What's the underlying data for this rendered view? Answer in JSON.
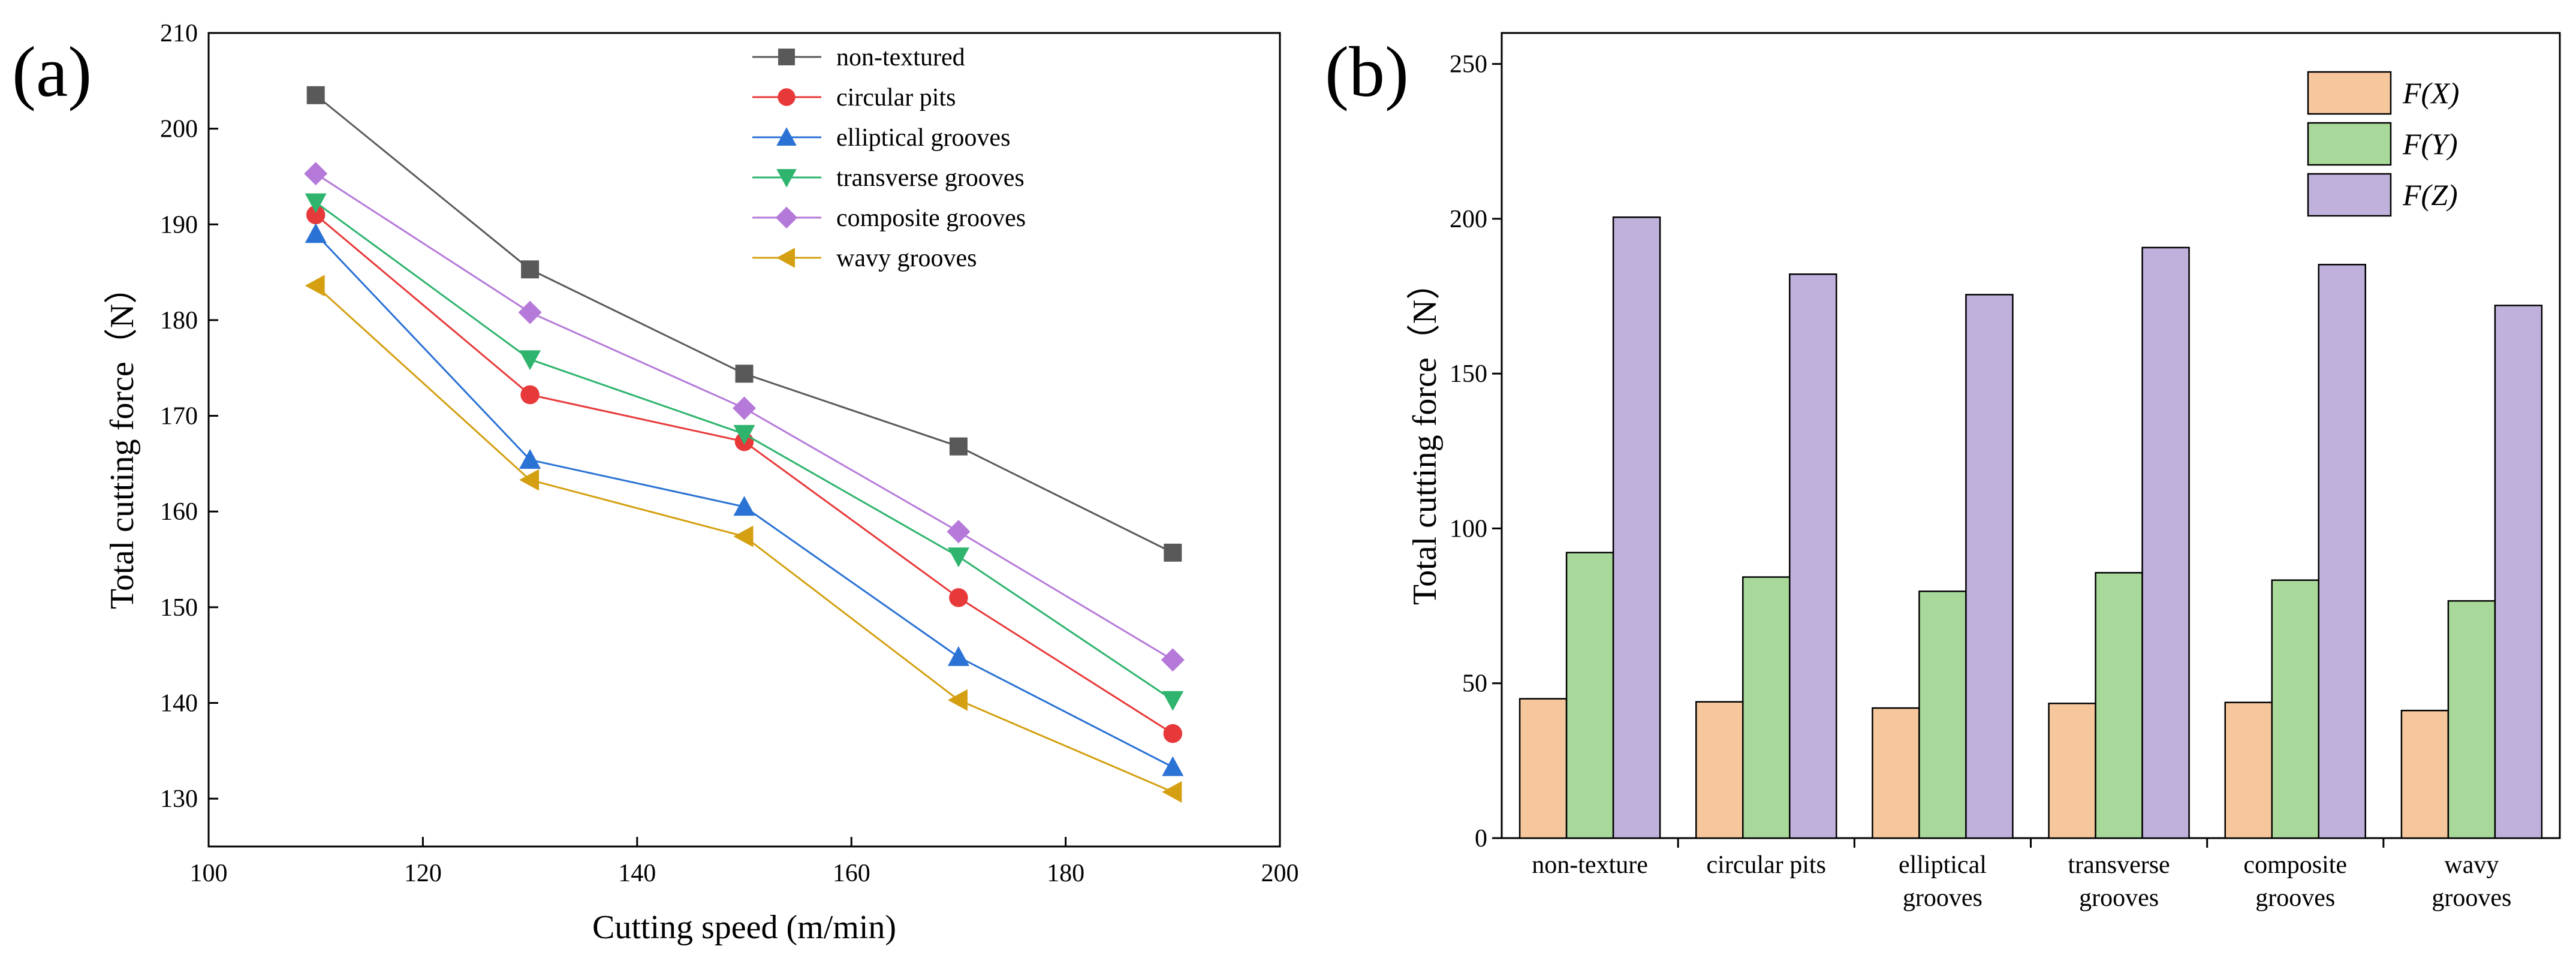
{
  "figure": {
    "panel_a_label": "(a)",
    "panel_b_label": "(b)"
  },
  "chart_data": [
    {
      "type": "line",
      "xlabel": "Cutting speed (m/min)",
      "ylabel": "Total cutting force（N）",
      "xlim": [
        100,
        200
      ],
      "ylim": [
        125,
        210
      ],
      "xticks": [
        100,
        120,
        140,
        160,
        180,
        200
      ],
      "yticks": [
        130,
        140,
        150,
        160,
        170,
        180,
        190,
        200,
        210
      ],
      "x": [
        110,
        130,
        150,
        170,
        190
      ],
      "legend": "top-right",
      "series": [
        {
          "name": "non-textured",
          "color": "#595959",
          "marker": "square",
          "values": [
            203.5,
            185.3,
            174.4,
            166.8,
            155.7
          ]
        },
        {
          "name": "circular pits",
          "color": "#e8393a",
          "marker": "circle",
          "values": [
            191.0,
            172.2,
            167.3,
            151.0,
            136.8
          ]
        },
        {
          "name": "elliptical grooves",
          "color": "#2a72d4",
          "marker": "triangle-up",
          "values": [
            189.0,
            165.4,
            160.5,
            144.8,
            133.3
          ]
        },
        {
          "name": "transverse grooves",
          "color": "#2eb46d",
          "marker": "triangle-down",
          "values": [
            192.3,
            175.9,
            168.1,
            155.3,
            140.3
          ]
        },
        {
          "name": "composite grooves",
          "color": "#b57ad9",
          "marker": "diamond",
          "values": [
            195.3,
            180.8,
            170.8,
            157.9,
            144.5
          ]
        },
        {
          "name": "wavy grooves",
          "color": "#d4a011",
          "marker": "triangle-left",
          "values": [
            183.6,
            163.3,
            157.4,
            140.3,
            130.7
          ]
        }
      ]
    },
    {
      "type": "bar",
      "ylabel": "Total cutting force（N）",
      "ylim": [
        0,
        260
      ],
      "yticks": [
        0,
        50,
        100,
        150,
        200,
        250
      ],
      "categories": [
        [
          "non-texture"
        ],
        [
          "circular pits"
        ],
        [
          "elliptical",
          "grooves"
        ],
        [
          "transverse",
          "grooves"
        ],
        [
          "composite",
          "grooves"
        ],
        [
          "wavy",
          "grooves"
        ]
      ],
      "legend": "top-right",
      "series": [
        {
          "name": "F(X)",
          "color": "#f6c79d",
          "values": [
            45.0,
            44.0,
            42.0,
            43.5,
            43.8,
            41.2
          ]
        },
        {
          "name": "F(Y)",
          "color": "#a9d99a",
          "values": [
            92.2,
            84.3,
            79.7,
            85.7,
            83.3,
            76.6
          ]
        },
        {
          "name": "F(Z)",
          "color": "#c0b1dc",
          "values": [
            200.5,
            182.1,
            175.5,
            190.7,
            185.2,
            172.0
          ]
        }
      ]
    }
  ]
}
